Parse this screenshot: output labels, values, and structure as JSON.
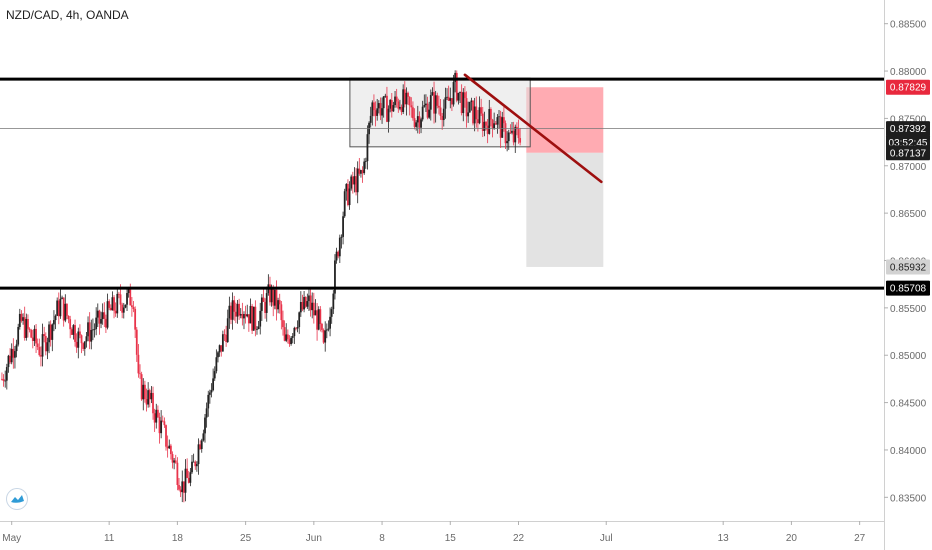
{
  "header": {
    "title": "NZD/CAD, 4h, OANDA"
  },
  "chart_data": {
    "type": "candlestick",
    "symbol": "NZD/CAD",
    "timeframe": "4h",
    "broker": "OANDA",
    "ylim": [
      0.8325,
      0.8875
    ],
    "y_ticks": [
      "0.88500",
      "0.88000",
      "0.87500",
      "0.87000",
      "0.86500",
      "0.86000",
      "0.85500",
      "0.85000",
      "0.84500",
      "0.84000",
      "0.83500"
    ],
    "y_tick_values": [
      0.885,
      0.88,
      0.875,
      0.87,
      0.865,
      0.86,
      0.855,
      0.85,
      0.845,
      0.84,
      0.835
    ],
    "x_ticks": [
      "May",
      "11",
      "18",
      "25",
      "Jun",
      "8",
      "15",
      "22",
      "Jul",
      "13",
      "20",
      "27"
    ],
    "x_tick_days": [
      0,
      10,
      17,
      24,
      31,
      38,
      45,
      52,
      61,
      73,
      80,
      87
    ],
    "x_range_days": [
      -1.2,
      89.5
    ],
    "bull_color": "#222222",
    "bear_color": "#e8334a",
    "anchors": [
      {
        "day": -1.0,
        "price": 0.8475
      },
      {
        "day": 1.0,
        "price": 0.8535
      },
      {
        "day": 3.0,
        "price": 0.8505
      },
      {
        "day": 5.0,
        "price": 0.8555
      },
      {
        "day": 7.0,
        "price": 0.8515
      },
      {
        "day": 9.0,
        "price": 0.8535
      },
      {
        "day": 11.0,
        "price": 0.8555
      },
      {
        "day": 12.5,
        "price": 0.8562
      },
      {
        "day": 13.0,
        "price": 0.847
      },
      {
        "day": 14.0,
        "price": 0.8455
      },
      {
        "day": 15.5,
        "price": 0.842
      },
      {
        "day": 16.5,
        "price": 0.8392
      },
      {
        "day": 17.5,
        "price": 0.8362
      },
      {
        "day": 18.5,
        "price": 0.8375
      },
      {
        "day": 19.5,
        "price": 0.842
      },
      {
        "day": 20.5,
        "price": 0.847
      },
      {
        "day": 21.5,
        "price": 0.851
      },
      {
        "day": 22.5,
        "price": 0.8545
      },
      {
        "day": 23.5,
        "price": 0.8555
      },
      {
        "day": 25.0,
        "price": 0.8535
      },
      {
        "day": 26.5,
        "price": 0.8565
      },
      {
        "day": 27.5,
        "price": 0.8548
      },
      {
        "day": 28.0,
        "price": 0.851
      },
      {
        "day": 29.5,
        "price": 0.8545
      },
      {
        "day": 30.5,
        "price": 0.8555
      },
      {
        "day": 31.5,
        "price": 0.8535
      },
      {
        "day": 32.0,
        "price": 0.8505
      },
      {
        "day": 32.8,
        "price": 0.856
      },
      {
        "day": 33.5,
        "price": 0.8615
      },
      {
        "day": 34.2,
        "price": 0.8665
      },
      {
        "day": 35.0,
        "price": 0.868
      },
      {
        "day": 36.0,
        "price": 0.869
      },
      {
        "day": 37.0,
        "price": 0.8765
      },
      {
        "day": 38.5,
        "price": 0.876
      },
      {
        "day": 40.0,
        "price": 0.877
      },
      {
        "day": 41.5,
        "price": 0.875
      },
      {
        "day": 43.0,
        "price": 0.8768
      },
      {
        "day": 44.5,
        "price": 0.876
      },
      {
        "day": 45.5,
        "price": 0.8785
      },
      {
        "day": 46.5,
        "price": 0.876
      },
      {
        "day": 47.5,
        "price": 0.8755
      },
      {
        "day": 48.5,
        "price": 0.8745
      },
      {
        "day": 49.5,
        "price": 0.8752
      },
      {
        "day": 50.5,
        "price": 0.8735
      },
      {
        "day": 51.5,
        "price": 0.8728
      },
      {
        "day": 52.2,
        "price": 0.8735
      }
    ],
    "levels": [
      {
        "price": 0.87915,
        "style": "thick",
        "label": "0.87915",
        "label_bg": "#000000"
      },
      {
        "price": 0.85708,
        "style": "thick",
        "label": "0.85708",
        "label_bg": "#000000"
      },
      {
        "price": 0.87392,
        "style": "thin",
        "label": "0.87392",
        "label_bg": "#1e1e1e"
      }
    ],
    "price_labels": [
      {
        "price": 0.87829,
        "text": "0.87829",
        "bg": "#e8283d",
        "fg": "#ffffff"
      },
      {
        "price": 0.87392,
        "text": "0.87392",
        "bg": "#1e1e1e",
        "fg": "#ffffff"
      },
      {
        "price": 0.87245,
        "text": "03:52:45",
        "bg": "#1e1e1e",
        "fg": "#ffffff"
      },
      {
        "price": 0.87137,
        "text": "0.87137",
        "bg": "#1e1e1e",
        "fg": "#ffffff"
      },
      {
        "price": 0.85932,
        "text": "0.85932",
        "bg": "#d2d2d2",
        "fg": "#1e1e1e"
      },
      {
        "price": 0.85708,
        "text": "0.85708",
        "bg": "#000000",
        "fg": "#ffffff"
      }
    ],
    "range_box": {
      "day_start": 34.7,
      "day_end": 53.2,
      "price_top": 0.87925,
      "price_bottom": 0.872
    },
    "trendline": {
      "start": {
        "day": 46.5,
        "price": 0.8796
      },
      "end": {
        "day": 60.5,
        "price": 0.8683
      },
      "color": "#9e0f0f"
    },
    "short_position": {
      "day_start": 52.8,
      "day_end": 60.7,
      "entry": 0.87137,
      "stop": 0.87829,
      "target": 0.85932,
      "stop_color": "#ff9ca4",
      "target_color": "#d9d9d9"
    }
  }
}
